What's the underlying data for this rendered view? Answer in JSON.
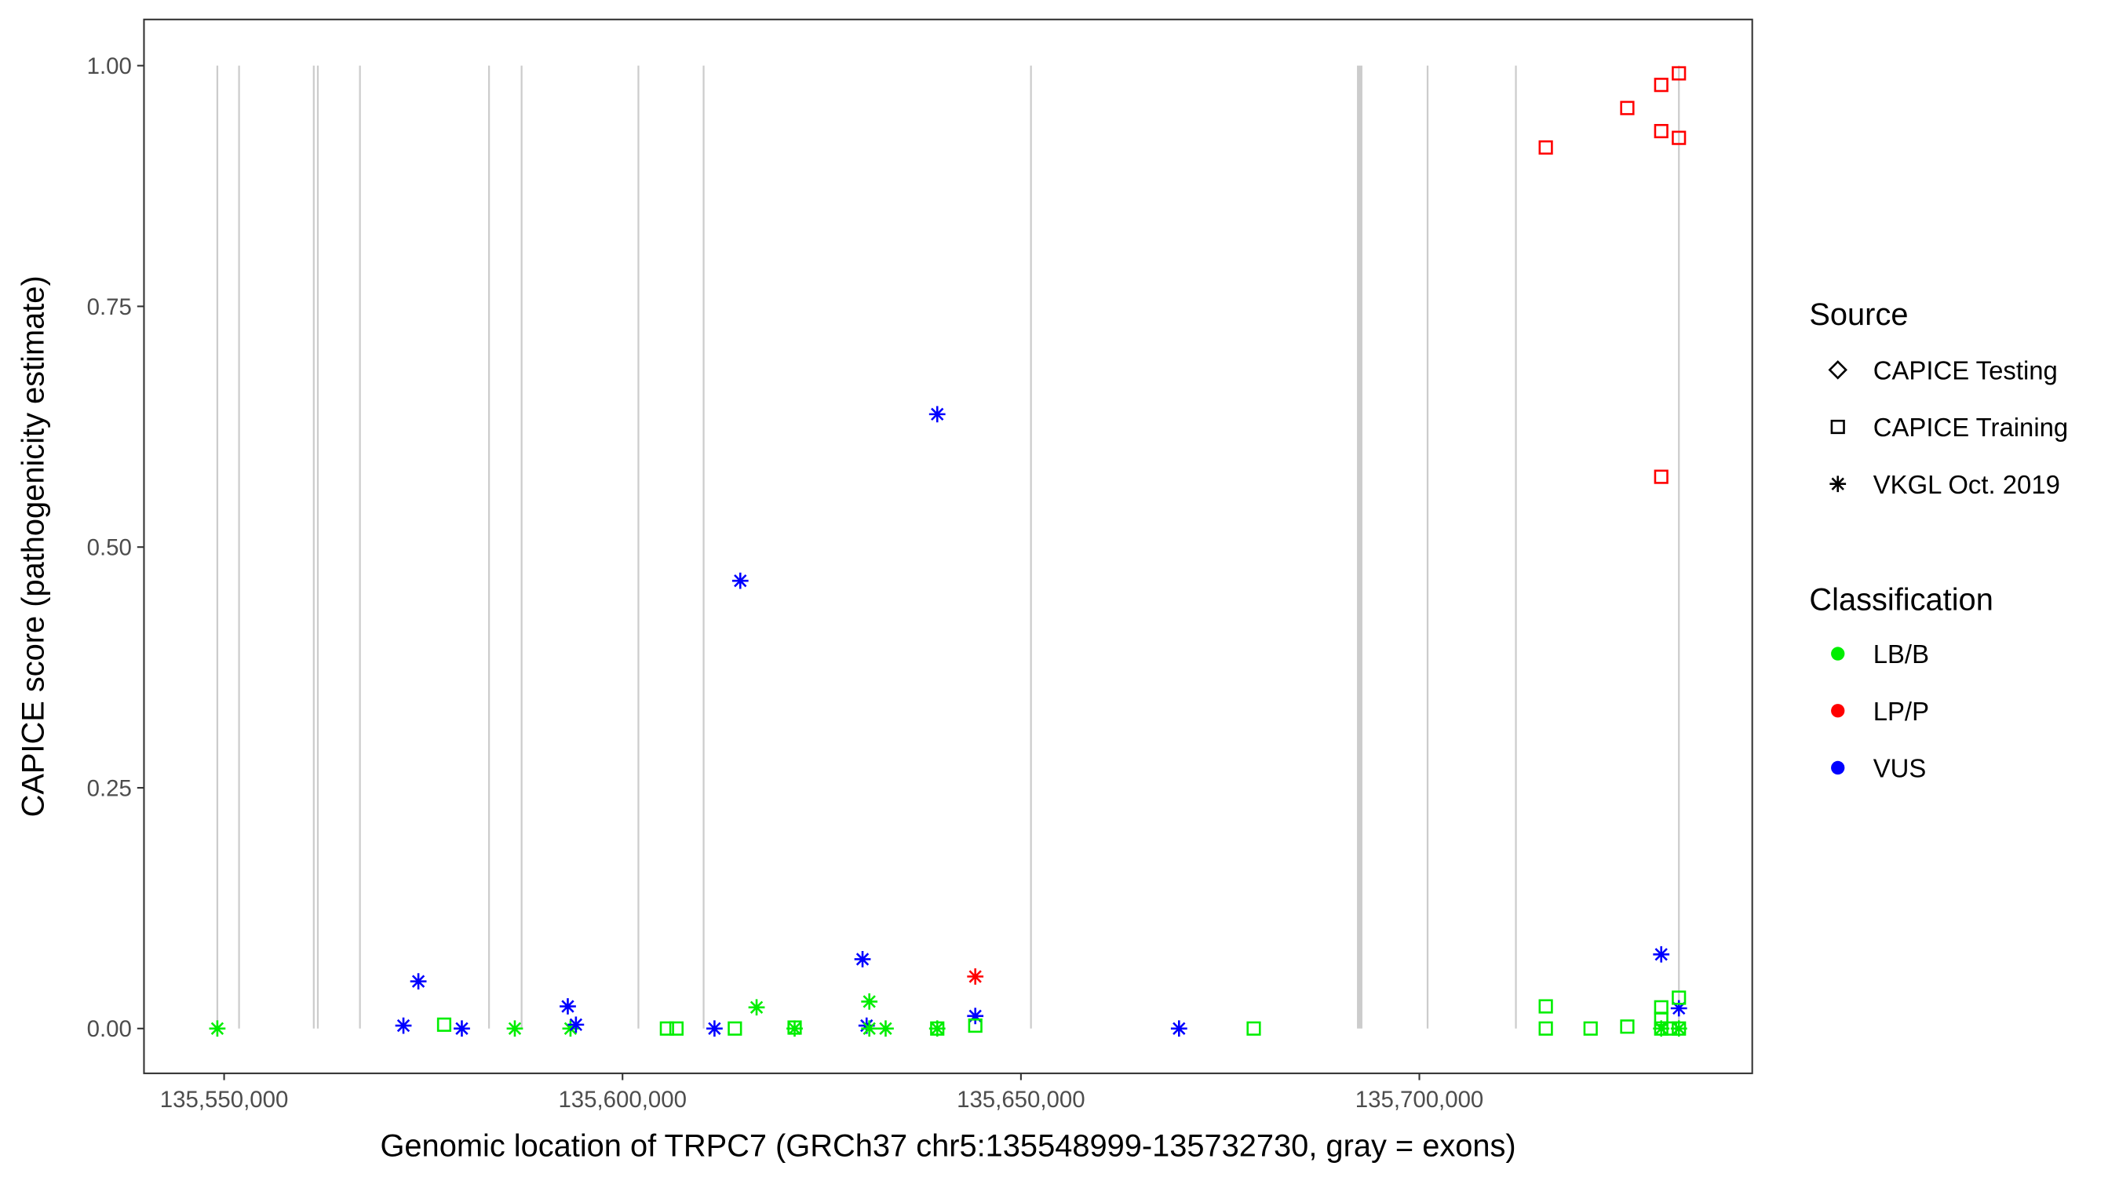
{
  "chart_data": {
    "type": "scatter",
    "xlabel": "Genomic location of TRPC7 (GRCh37 chr5:135548999-135732730, gray = exons)",
    "ylabel": "CAPICE score (pathogenicity estimate)",
    "xlim": [
      135540000,
      135745000
    ],
    "ylim": [
      -0.045,
      1.05
    ],
    "x_ticks": [
      135550000,
      135600000,
      135650000,
      135700000
    ],
    "x_tick_labels": [
      "135,550,000",
      "135,600,000",
      "135,650,000",
      "135,700,000"
    ],
    "y_ticks": [
      0,
      0.25,
      0.5,
      0.75,
      1.0
    ],
    "y_tick_labels": [
      "0.00",
      "0.25",
      "0.50",
      "0.75",
      "1.00"
    ],
    "grid": false,
    "exons": [
      135549148,
      135551875,
      135561251,
      135561762,
      135567047,
      135583242,
      135587333,
      135601993,
      135610176,
      135651259,
      135692513,
      135701036,
      135712117,
      135732573
    ],
    "legend_placement": "right",
    "legend": {
      "source_title": "Source",
      "source": [
        {
          "label": "CAPICE Testing",
          "shape": "diamond"
        },
        {
          "label": "CAPICE Training",
          "shape": "square"
        },
        {
          "label": "VKGL Oct. 2019",
          "shape": "asterisk"
        }
      ],
      "class_title": "Classification",
      "classes": [
        {
          "label": "LB/B",
          "color": "#00ee00"
        },
        {
          "label": "LP/P",
          "color": "#ff0000"
        },
        {
          "label": "VUS",
          "color": "#0000ff"
        }
      ]
    },
    "points": [
      {
        "x": 135549148,
        "y": 0,
        "source": "VKGL Oct. 2019",
        "class": "LB/B"
      },
      {
        "x": 135572502,
        "y": 0.003,
        "source": "VKGL Oct. 2019",
        "class": "VUS"
      },
      {
        "x": 135574377,
        "y": 0.049,
        "source": "VKGL Oct. 2019",
        "class": "VUS"
      },
      {
        "x": 135579832,
        "y": 0,
        "source": "VKGL Oct. 2019",
        "class": "VUS"
      },
      {
        "x": 135586481,
        "y": 0,
        "source": "VKGL Oct. 2019",
        "class": "LB/B"
      },
      {
        "x": 135593129,
        "y": 0.023,
        "source": "VKGL Oct. 2019",
        "class": "VUS"
      },
      {
        "x": 135593470,
        "y": 0,
        "source": "VKGL Oct. 2019",
        "class": "LB/B"
      },
      {
        "x": 135594152,
        "y": 0.004,
        "source": "VKGL Oct. 2019",
        "class": "VUS"
      },
      {
        "x": 135611540,
        "y": 0,
        "source": "VKGL Oct. 2019",
        "class": "VUS"
      },
      {
        "x": 135614779,
        "y": 0.465,
        "source": "VKGL Oct. 2019",
        "class": "VUS"
      },
      {
        "x": 135616824,
        "y": 0.022,
        "source": "VKGL Oct. 2019",
        "class": "LB/B"
      },
      {
        "x": 135621597,
        "y": 0,
        "source": "VKGL Oct. 2019",
        "class": "LB/B"
      },
      {
        "x": 135630121,
        "y": 0.072,
        "source": "VKGL Oct. 2019",
        "class": "VUS"
      },
      {
        "x": 135630973,
        "y": 0.028,
        "source": "VKGL Oct. 2019",
        "class": "LB/B"
      },
      {
        "x": 135630632,
        "y": 0.003,
        "source": "VKGL Oct. 2019",
        "class": "VUS"
      },
      {
        "x": 135630973,
        "y": 0,
        "source": "VKGL Oct. 2019",
        "class": "LB/B"
      },
      {
        "x": 135633019,
        "y": 0,
        "source": "VKGL Oct. 2019",
        "class": "LB/B"
      },
      {
        "x": 135639497,
        "y": 0.638,
        "source": "VKGL Oct. 2019",
        "class": "VUS"
      },
      {
        "x": 135639497,
        "y": 0,
        "source": "VKGL Oct. 2019",
        "class": "LB/B"
      },
      {
        "x": 135644270,
        "y": 0.054,
        "source": "VKGL Oct. 2019",
        "class": "LP/P"
      },
      {
        "x": 135644270,
        "y": 0.013,
        "source": "VKGL Oct. 2019",
        "class": "VUS"
      },
      {
        "x": 135669840,
        "y": 0,
        "source": "VKGL Oct. 2019",
        "class": "VUS"
      },
      {
        "x": 135730357,
        "y": 0.077,
        "source": "VKGL Oct. 2019",
        "class": "VUS"
      },
      {
        "x": 135732573,
        "y": 0.021,
        "source": "VKGL Oct. 2019",
        "class": "VUS"
      },
      {
        "x": 135732573,
        "y": 0,
        "source": "VKGL Oct. 2019",
        "class": "LB/B"
      },
      {
        "x": 135730357,
        "y": 0,
        "source": "VKGL Oct. 2019",
        "class": "LB/B"
      },
      {
        "x": 135577616,
        "y": 0.004,
        "source": "CAPICE Training",
        "class": "LB/B"
      },
      {
        "x": 135605573,
        "y": 0,
        "source": "CAPICE Training",
        "class": "LB/B"
      },
      {
        "x": 135606767,
        "y": 0,
        "source": "CAPICE Training",
        "class": "LB/B"
      },
      {
        "x": 135614097,
        "y": 0,
        "source": "CAPICE Training",
        "class": "LB/B"
      },
      {
        "x": 135621597,
        "y": 0.001,
        "source": "CAPICE Training",
        "class": "LB/B"
      },
      {
        "x": 135639497,
        "y": 0,
        "source": "CAPICE Training",
        "class": "LB/B"
      },
      {
        "x": 135644270,
        "y": 0.003,
        "source": "CAPICE Training",
        "class": "LB/B"
      },
      {
        "x": 135679216,
        "y": 0,
        "source": "CAPICE Training",
        "class": "LB/B"
      },
      {
        "x": 135715867,
        "y": 0.023,
        "source": "CAPICE Training",
        "class": "LB/B"
      },
      {
        "x": 135715867,
        "y": 0,
        "source": "CAPICE Training",
        "class": "LB/B"
      },
      {
        "x": 135721493,
        "y": 0,
        "source": "CAPICE Training",
        "class": "LB/B"
      },
      {
        "x": 135726096,
        "y": 0.002,
        "source": "CAPICE Training",
        "class": "LB/B"
      },
      {
        "x": 135730357,
        "y": 0,
        "source": "CAPICE Training",
        "class": "LB/B"
      },
      {
        "x": 135730357,
        "y": 0.01,
        "source": "CAPICE Training",
        "class": "LB/B"
      },
      {
        "x": 135730357,
        "y": 0.022,
        "source": "CAPICE Training",
        "class": "LB/B"
      },
      {
        "x": 135732573,
        "y": 0.032,
        "source": "CAPICE Training",
        "class": "LB/B"
      },
      {
        "x": 135732573,
        "y": 0,
        "source": "CAPICE Training",
        "class": "LB/B"
      },
      {
        "x": 135731465,
        "y": 0,
        "source": "CAPICE Training",
        "class": "LB/B"
      },
      {
        "x": 135715867,
        "y": 0.915,
        "source": "CAPICE Training",
        "class": "LP/P"
      },
      {
        "x": 135726096,
        "y": 0.956,
        "source": "CAPICE Training",
        "class": "LP/P"
      },
      {
        "x": 135730357,
        "y": 0.98,
        "source": "CAPICE Training",
        "class": "LP/P"
      },
      {
        "x": 135732573,
        "y": 0.992,
        "source": "CAPICE Training",
        "class": "LP/P"
      },
      {
        "x": 135730357,
        "y": 0.932,
        "source": "CAPICE Training",
        "class": "LP/P"
      },
      {
        "x": 135732573,
        "y": 0.925,
        "source": "CAPICE Training",
        "class": "LP/P"
      },
      {
        "x": 135730357,
        "y": 0.573,
        "source": "CAPICE Training",
        "class": "LP/P"
      }
    ]
  }
}
